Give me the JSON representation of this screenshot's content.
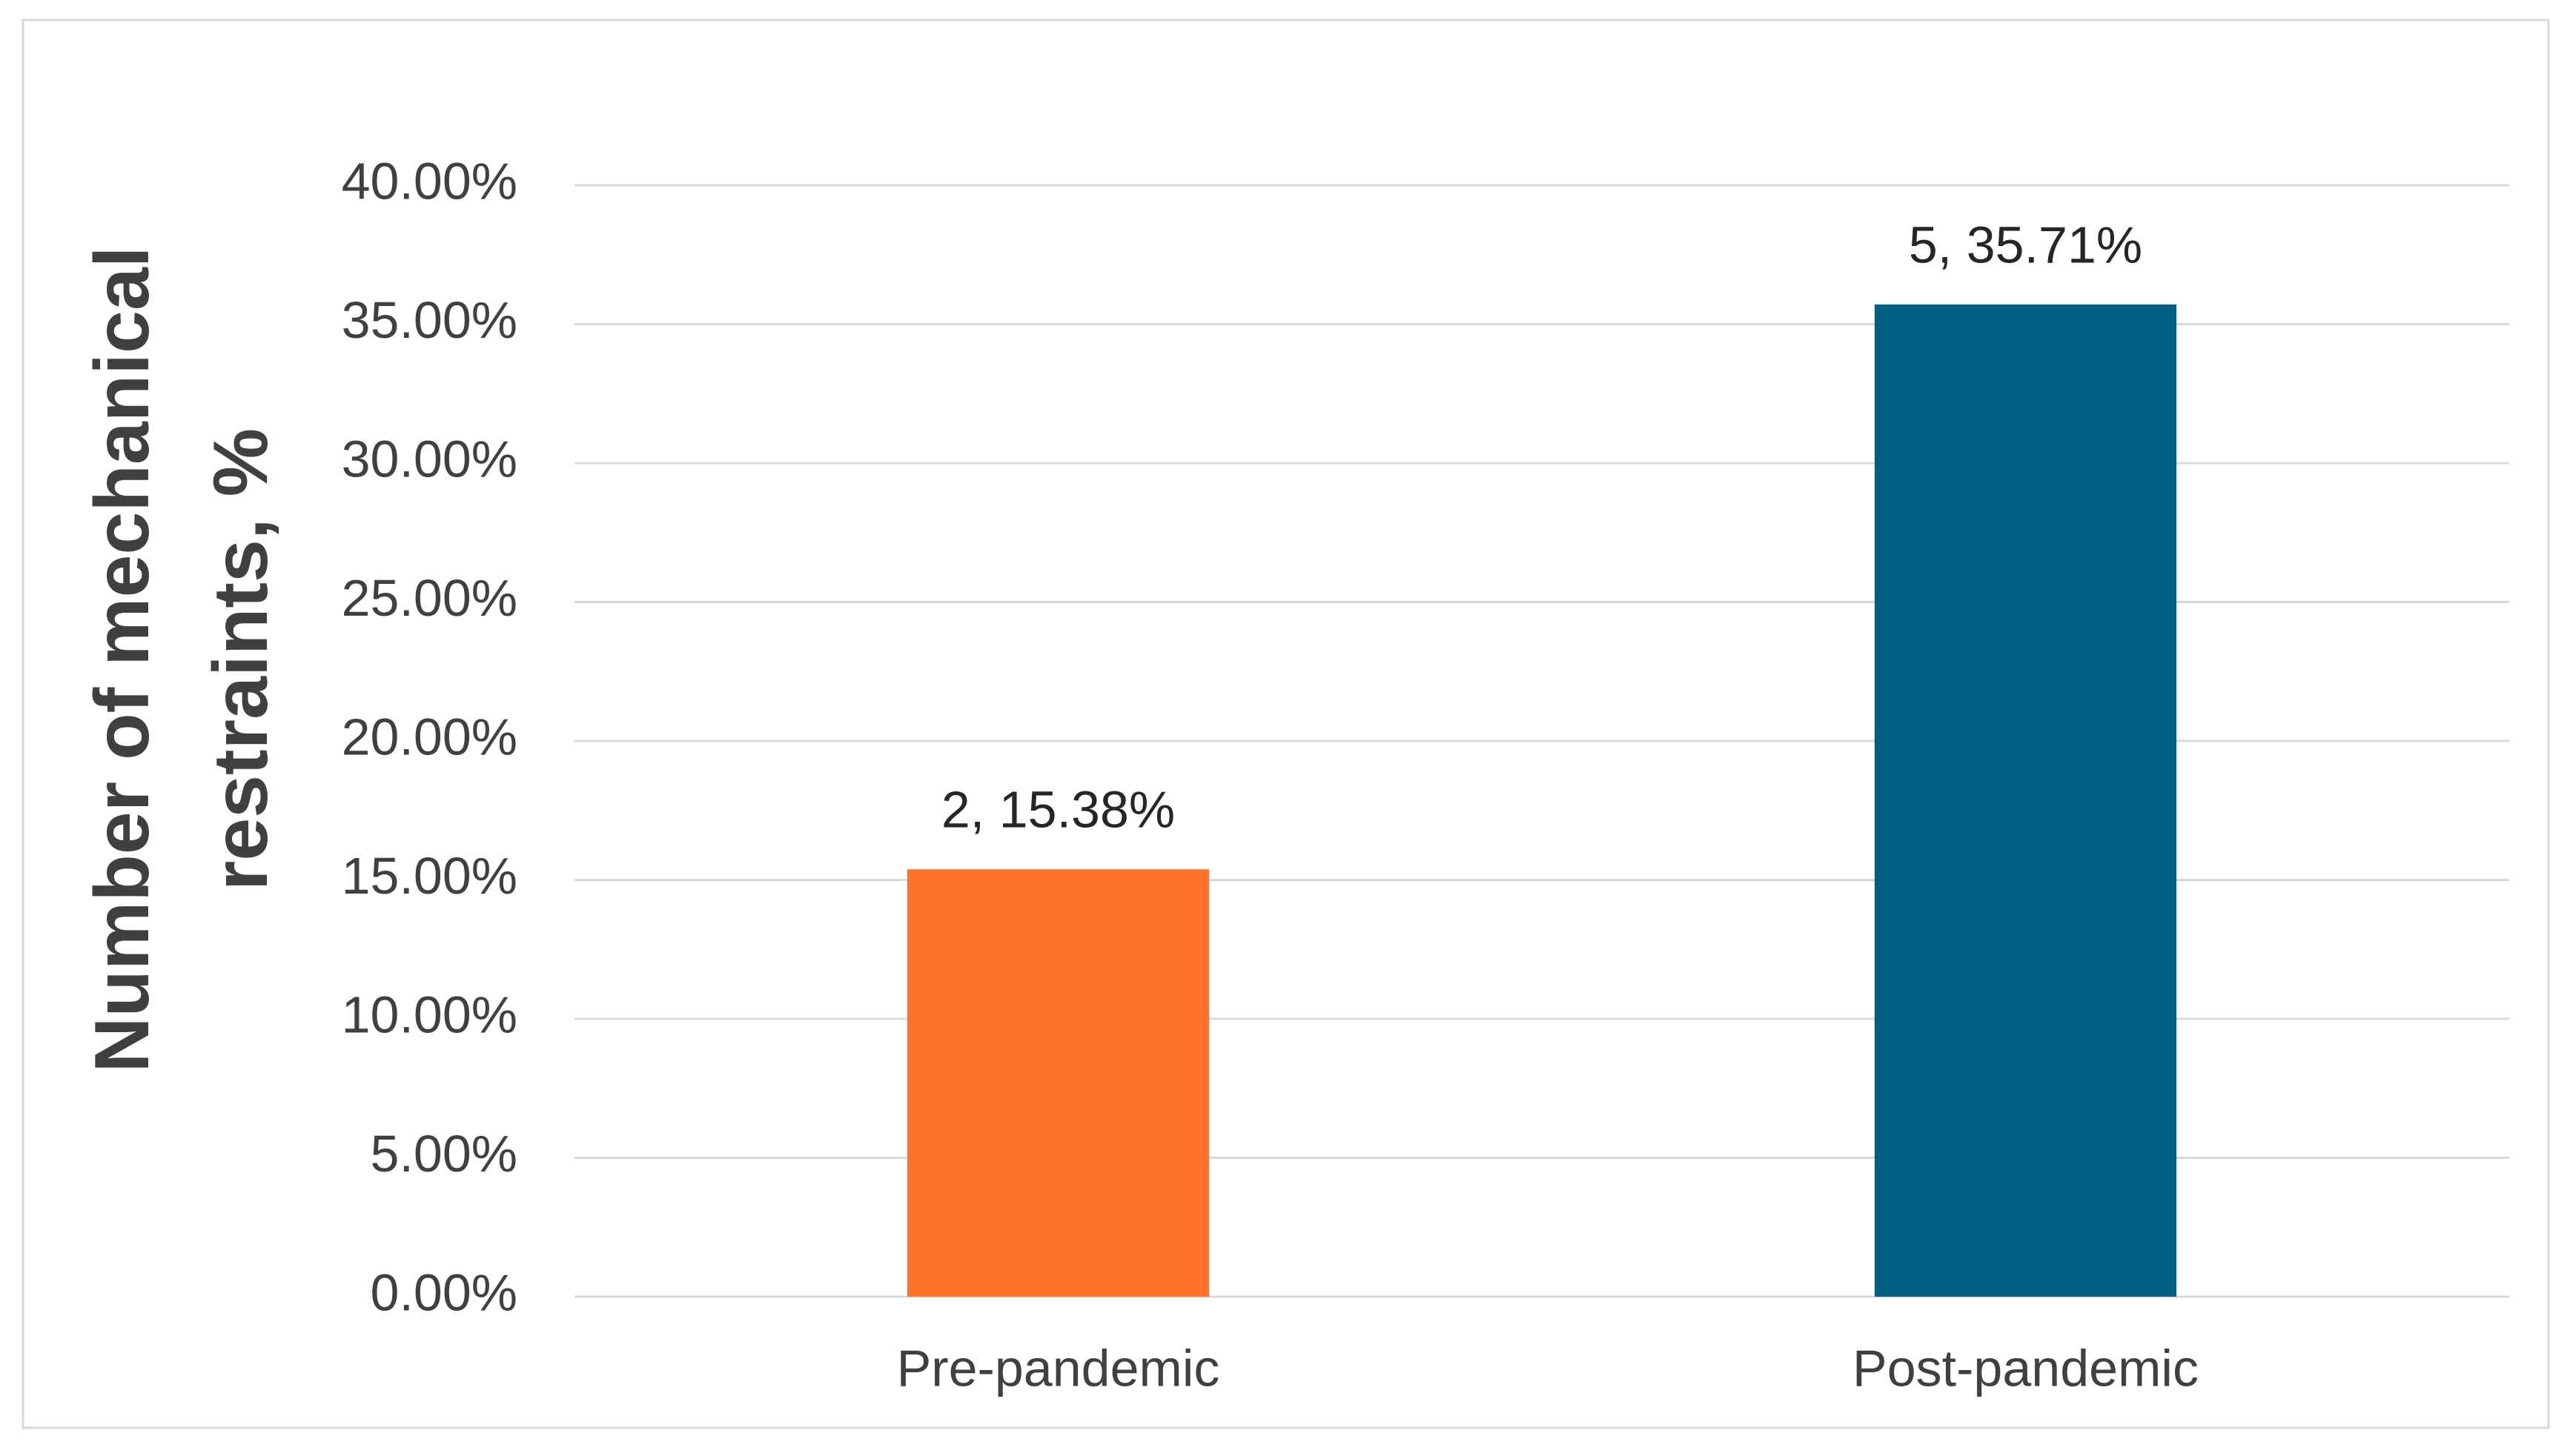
{
  "chart_data": {
    "type": "bar",
    "y_label": "Number of mechanical restraints, %",
    "categories": [
      "Pre-pandemic",
      "Post-pandemic"
    ],
    "values": [
      15.38,
      35.71
    ],
    "value_labels": [
      "2, 15.38%",
      "5, 35.71%"
    ],
    "colors": [
      "#ff7229",
      "#005f83"
    ],
    "ylim": [
      0,
      40
    ],
    "yticks": [
      {
        "value": 0,
        "label": "0.00%"
      },
      {
        "value": 5,
        "label": "5.00%"
      },
      {
        "value": 10,
        "label": "10.00%"
      },
      {
        "value": 15,
        "label": "15.00%"
      },
      {
        "value": 20,
        "label": "20.00%"
      },
      {
        "value": 25,
        "label": "25.00%"
      },
      {
        "value": 30,
        "label": "30.00%"
      },
      {
        "value": 35,
        "label": "35.00%"
      },
      {
        "value": 40,
        "label": "40.00%"
      }
    ],
    "grid": true
  }
}
